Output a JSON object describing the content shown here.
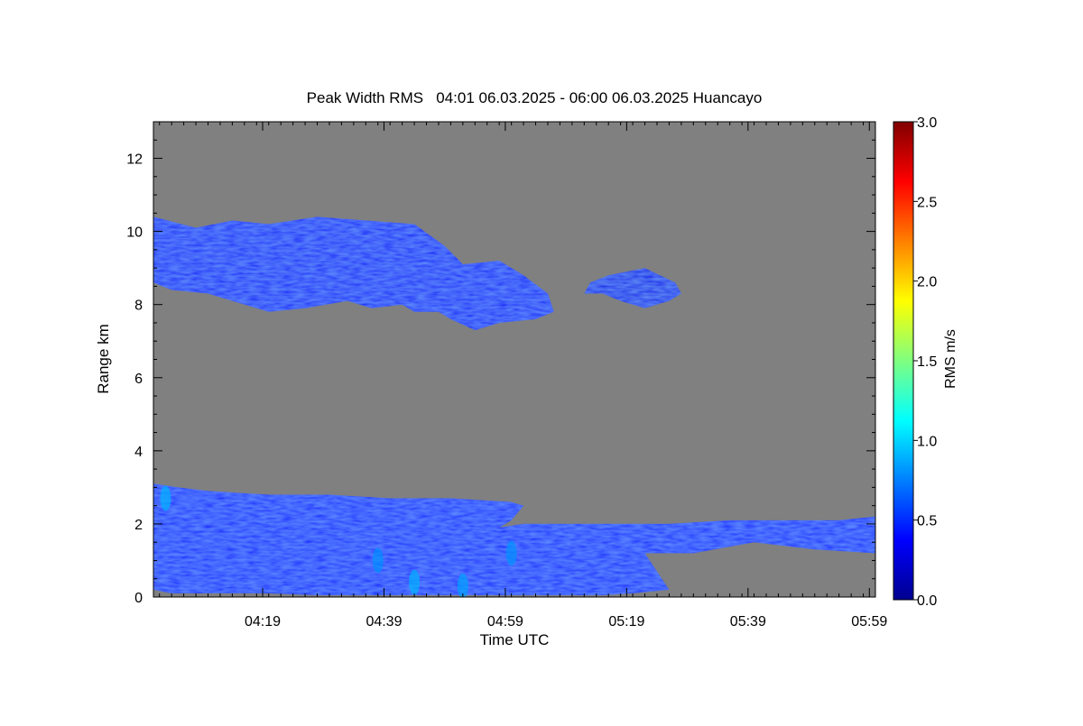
{
  "chart_data": {
    "type": "heatmap",
    "title": "Peak Width RMS   04:01 06.03.2025 - 06:00 06.03.2025 Huancayo",
    "xlabel": "Time UTC",
    "ylabel": "Range km",
    "x_ticks": [
      {
        "minutes": 19,
        "label": "04:19"
      },
      {
        "minutes": 39,
        "label": "04:39"
      },
      {
        "minutes": 59,
        "label": "04:59"
      },
      {
        "minutes": 79,
        "label": "05:19"
      },
      {
        "minutes": 99,
        "label": "05:39"
      },
      {
        "minutes": 119,
        "label": "05:59"
      }
    ],
    "y_ticks": [
      0,
      2,
      4,
      6,
      8,
      10,
      12
    ],
    "xlim": [
      1,
      120
    ],
    "ylim": [
      0,
      13
    ],
    "background_color": "#808080",
    "colorbar": {
      "label": "RMS m/s",
      "range": [
        0.0,
        3.0
      ],
      "ticks": [
        "0.0",
        "0.5",
        "1.0",
        "1.5",
        "2.0",
        "2.5",
        "3.0"
      ],
      "colormap": "jet"
    },
    "regions": [
      {
        "name": "upper cloud layer",
        "x": [
          1,
          8,
          14,
          20,
          28,
          36,
          44,
          49,
          52,
          58,
          62,
          66,
          67,
          64,
          58,
          54,
          50,
          48,
          44,
          42,
          37,
          33,
          26,
          20,
          14,
          10,
          4,
          1
        ],
        "y": [
          10.4,
          10.1,
          10.3,
          10.2,
          10.4,
          10.3,
          10.2,
          9.6,
          9.1,
          9.2,
          8.8,
          8.3,
          7.8,
          7.6,
          7.5,
          7.3,
          7.6,
          7.8,
          7.8,
          8.0,
          7.9,
          8.1,
          7.9,
          7.8,
          8.1,
          8.3,
          8.4,
          8.6
        ],
        "value": 0.35
      },
      {
        "name": "upper cloud patch",
        "x": [
          73,
          76,
          79,
          82,
          87,
          88,
          86,
          82,
          78,
          75,
          72
        ],
        "y": [
          8.6,
          8.8,
          8.9,
          9.0,
          8.6,
          8.3,
          8.1,
          7.9,
          8.1,
          8.3,
          8.3
        ],
        "value": 0.3
      },
      {
        "name": "boundary layer",
        "x": [
          1,
          5,
          10,
          20,
          30,
          40,
          50,
          60,
          62,
          60,
          58,
          62,
          70,
          78,
          86,
          96,
          106,
          114,
          120,
          120,
          110,
          100,
          90,
          82,
          86,
          80,
          75,
          70,
          66,
          60,
          52,
          44,
          36,
          28,
          20,
          12,
          4,
          1
        ],
        "y": [
          3.1,
          3.0,
          2.9,
          2.8,
          2.8,
          2.7,
          2.7,
          2.6,
          2.5,
          2.1,
          1.9,
          2.0,
          2.0,
          2.0,
          2.0,
          2.1,
          2.1,
          2.1,
          2.2,
          1.2,
          1.3,
          1.5,
          1.2,
          1.2,
          0.2,
          0.1,
          0.05,
          0.05,
          0.05,
          0.05,
          0.05,
          0.05,
          0.05,
          0.05,
          0.1,
          0.1,
          0.1,
          0.2
        ],
        "value": 0.45
      }
    ],
    "local_maxima": [
      {
        "x": 38,
        "y": 1.0,
        "value": 0.8
      },
      {
        "x": 44,
        "y": 0.4,
        "value": 0.9
      },
      {
        "x": 52,
        "y": 0.3,
        "value": 0.85
      },
      {
        "x": 60,
        "y": 1.2,
        "value": 0.8
      },
      {
        "x": 3,
        "y": 2.7,
        "value": 0.9
      }
    ]
  }
}
